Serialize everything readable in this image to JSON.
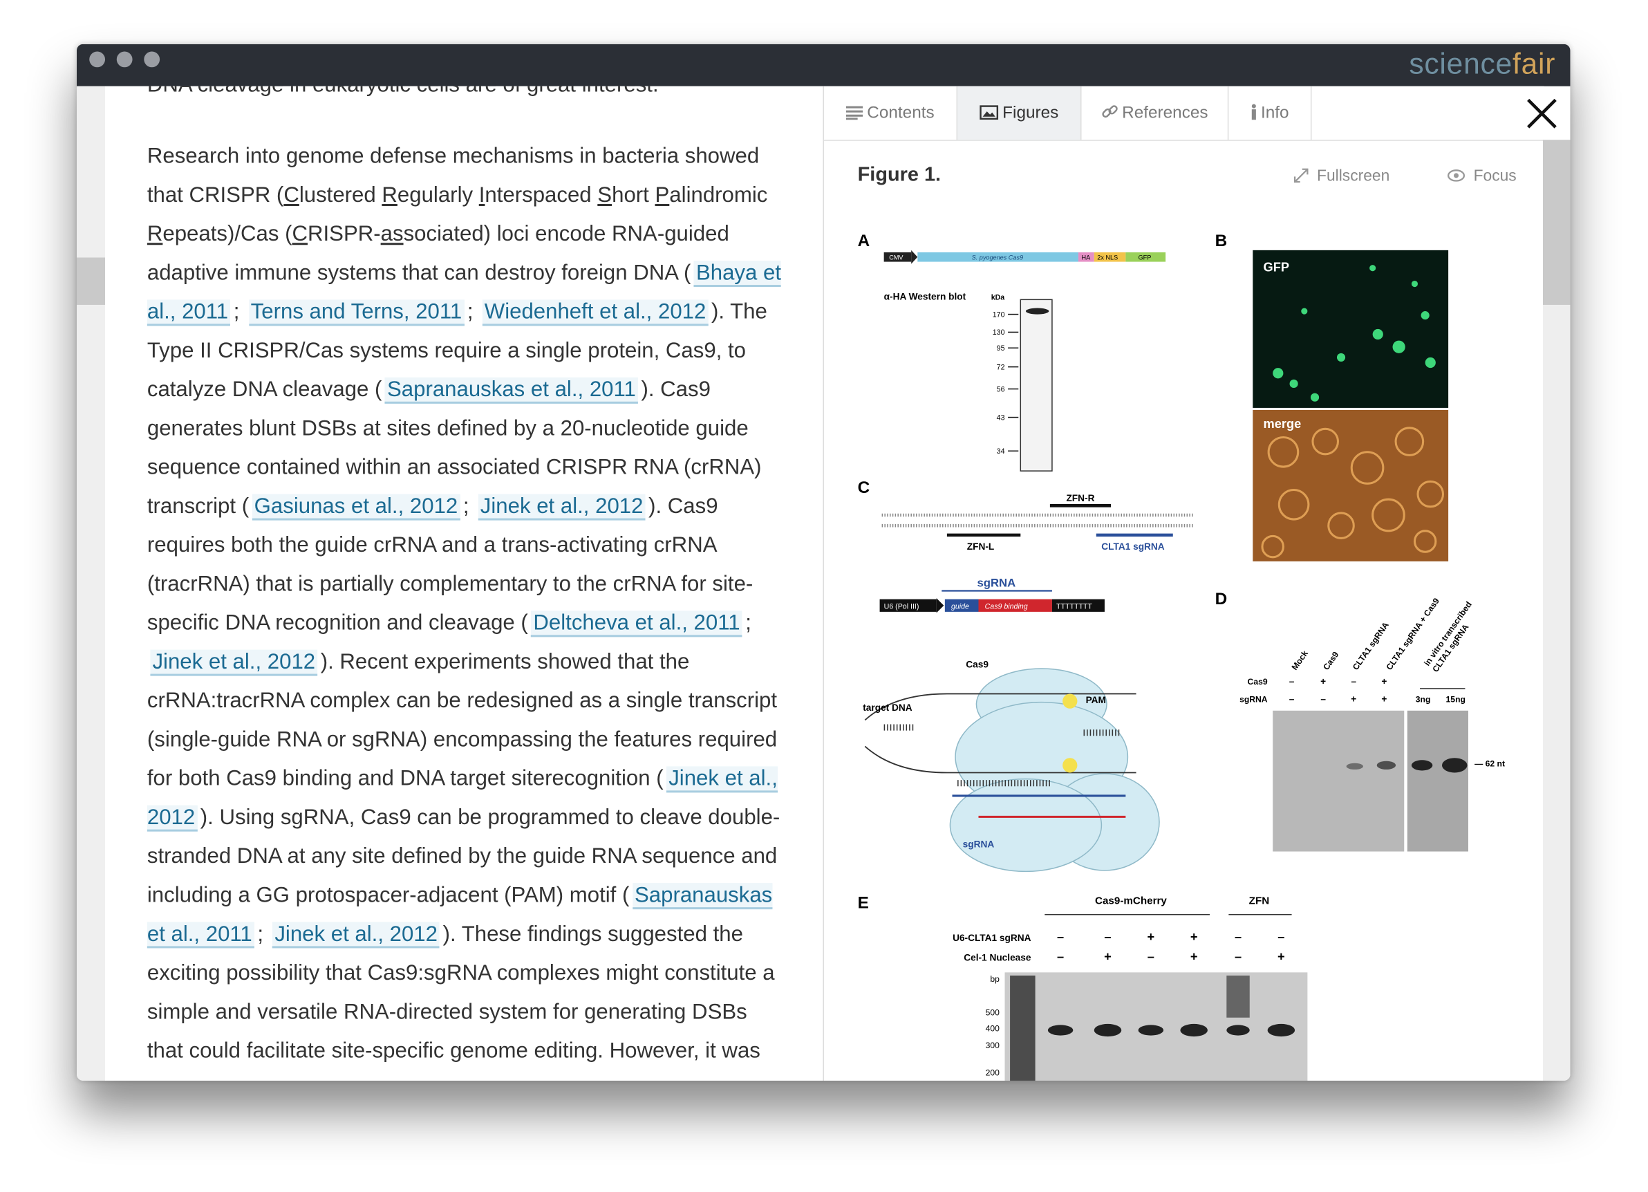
{
  "window": {
    "logo_a": "science",
    "logo_b": "fair"
  },
  "article": {
    "paragraphs": [
      [
        {
          "text": "DNA cleavage in eukaryotic cells are of great interest."
        }
      ],
      [
        {
          "text": "Research into genome defense mechanisms in bacteria showed that CRISPR ("
        },
        {
          "u": "C"
        },
        {
          "text": "lustered "
        },
        {
          "u": "R"
        },
        {
          "text": "egularly "
        },
        {
          "u": "I"
        },
        {
          "text": "nterspaced "
        },
        {
          "u": "S"
        },
        {
          "text": "hort "
        },
        {
          "u": "P"
        },
        {
          "text": "alindromic "
        },
        {
          "u": "R"
        },
        {
          "text": "epeats)/Cas ("
        },
        {
          "u": "C"
        },
        {
          "text": "RISPR-"
        },
        {
          "u": "as"
        },
        {
          "text": "sociated) loci encode RNA-guided adaptive immune systems that can destroy foreign DNA ("
        },
        {
          "link": "Bhaya et al., 2011"
        },
        {
          "text": "; "
        },
        {
          "link": "Terns and Terns, 2011"
        },
        {
          "text": "; "
        },
        {
          "link": "Wiedenheft et al., 2012"
        },
        {
          "text": "). The Type II CRISPR/Cas systems require a single protein, Cas9, to catalyze DNA cleavage ("
        },
        {
          "link": "Sapranauskas et al., 2011"
        },
        {
          "text": "). Cas9 generates blunt DSBs at sites defined by a 20-nucleotide guide sequence contained within an associated CRISPR RNA (crRNA) transcript ("
        },
        {
          "link": "Gasiunas et al., 2012"
        },
        {
          "text": "; "
        },
        {
          "link": "Jinek et al., 2012"
        },
        {
          "text": "). Cas9 requires both the guide crRNA and a trans-activating crRNA (tracrRNA) that is partially complementary to the crRNA for site-specific DNA recognition and cleavage ("
        },
        {
          "link": "Deltcheva et al., 2011"
        },
        {
          "text": "; "
        },
        {
          "link": "Jinek et al., 2012"
        },
        {
          "text": "). Recent experiments showed that the crRNA:tracrRNA complex can be redesigned as a single transcript (single-guide RNA or sgRNA) encompassing the features required for both Cas9 binding and DNA target siterecognition ("
        },
        {
          "link": "Jinek et al., 2012"
        },
        {
          "text": "). Using sgRNA, Cas9 can be programmed to cleave double-stranded DNA at any site defined by the guide RNA sequence and including a GG protospacer-adjacent (PAM) motif ("
        },
        {
          "link": "Sapranauskas et al., 2011"
        },
        {
          "text": "; "
        },
        {
          "link": "Jinek et al., 2012"
        },
        {
          "text": "). These findings suggested the exciting possibility that Cas9:sgRNA complexes might constitute a simple and versatile RNA-directed system for generating DSBs that could facilitate site-specific genome editing. However, it was not known whether such a bacterial"
        }
      ]
    ]
  },
  "panel": {
    "tabs": [
      "Contents",
      "Figures",
      "References",
      "Info"
    ],
    "figure_title": "Figure 1.",
    "actions": [
      "Fullscreen",
      "Focus"
    ]
  },
  "figure": {
    "panels": [
      "A",
      "B",
      "C",
      "D",
      "E"
    ],
    "a": {
      "cmv": "CMV",
      "cas9": "S. pyogenes Cas9",
      "ha": "HA",
      "nls": "2x NLS",
      "gfp": "GFP",
      "blot": "α-HA Western blot",
      "kda": "kDa",
      "kda_ticks": [
        170,
        130,
        95,
        72,
        56,
        43,
        34
      ]
    },
    "b": {
      "gfp": "GFP",
      "merge": "merge"
    },
    "c": {
      "zfn_r": "ZFN-R",
      "zfn_l": "ZFN-L",
      "clta1": "CLTA1 sgRNA",
      "sgrna": "sgRNA",
      "u6": "U6 (Pol III)",
      "guide": "guide",
      "binding": "Cas9 binding",
      "polyt": "TTTTTTTT",
      "cas9": "Cas9",
      "target": "target DNA",
      "pam": "PAM",
      "sgrna2": "sgRNA"
    },
    "d": {
      "lanes": [
        "Mock",
        "Cas9",
        "CLTA1 sgRNA",
        "CLTA1 sgRNA + Cas9",
        "in vitro transcribed",
        "CLTA1 sgRNA"
      ],
      "rows": [
        "Cas9",
        "sgRNA"
      ],
      "cas9_signs": [
        "–",
        "+",
        "–",
        "+"
      ],
      "sgrna_signs": [
        "–",
        "–",
        "+",
        "+"
      ],
      "amounts": [
        "3ng",
        "15ng"
      ],
      "marker": "— 62 nt"
    },
    "e": {
      "group1": "Cas9-mCherry",
      "group2": "ZFN",
      "rows": [
        "U6-CLTA1 sgRNA",
        "Cel-1 Nuclease"
      ],
      "row1_signs": [
        "–",
        "–",
        "+",
        "+",
        "–",
        "–"
      ],
      "row2_signs": [
        "–",
        "+",
        "–",
        "+",
        "–",
        "+"
      ],
      "bp": "bp",
      "bp_ticks": [
        500,
        400,
        300,
        200
      ]
    }
  }
}
